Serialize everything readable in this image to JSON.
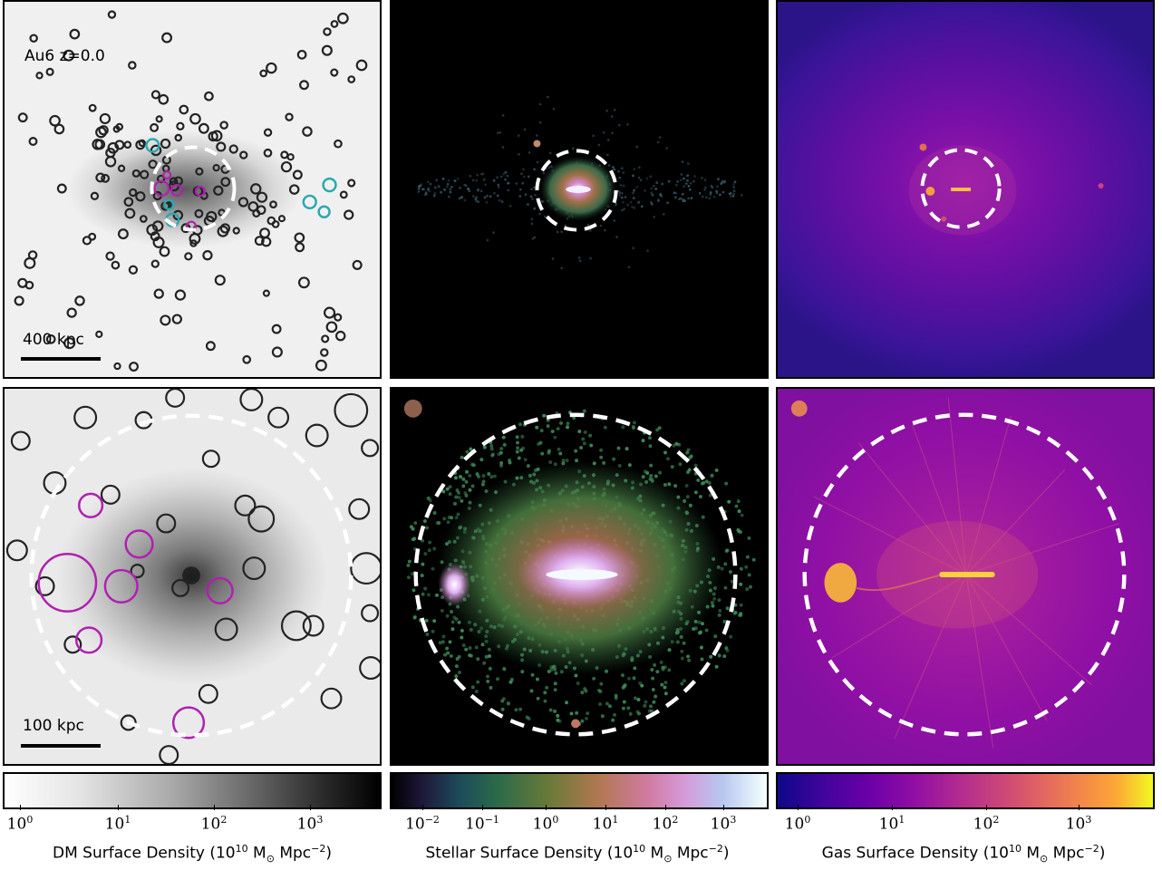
{
  "panel_label": "Au6 z=0.0",
  "scale_top": "400 kpc",
  "scale_bottom": "100 kpc",
  "colorbars": [
    {
      "label_pre": "DM Surface Density (10",
      "label_exp": "10",
      "label_mid": " M",
      "label_sun": "⊙",
      "label_post": " Mpc",
      "label_exp2": "−2",
      "label_end": ")",
      "ticks": [
        {
          "base": "10",
          "exp": "0"
        },
        {
          "base": "10",
          "exp": "1"
        },
        {
          "base": "10",
          "exp": "2"
        },
        {
          "base": "10",
          "exp": "3"
        }
      ]
    },
    {
      "label_pre": "Stellar Surface Density (10",
      "label_exp": "10",
      "label_mid": " M",
      "label_sun": "⊙",
      "label_post": " Mpc",
      "label_exp2": "−2",
      "label_end": ")",
      "ticks": [
        {
          "base": "10",
          "exp": "−2"
        },
        {
          "base": "10",
          "exp": "−1"
        },
        {
          "base": "10",
          "exp": "0"
        },
        {
          "base": "10",
          "exp": "1"
        },
        {
          "base": "10",
          "exp": "2"
        },
        {
          "base": "10",
          "exp": "3"
        }
      ]
    },
    {
      "label_pre": "Gas Surface Density (10",
      "label_exp": "10",
      "label_mid": " M",
      "label_sun": "⊙",
      "label_post": " Mpc",
      "label_exp2": "−2",
      "label_end": ")",
      "ticks": [
        {
          "base": "10",
          "exp": "0"
        },
        {
          "base": "10",
          "exp": "1"
        },
        {
          "base": "10",
          "exp": "2"
        },
        {
          "base": "10",
          "exp": "3"
        }
      ]
    }
  ],
  "colors": {
    "dm_circle": "#222222",
    "satellite_cyan": "#2aa8b0",
    "satellite_magenta": "#b020b0",
    "virial_circle": "#ffffff"
  }
}
